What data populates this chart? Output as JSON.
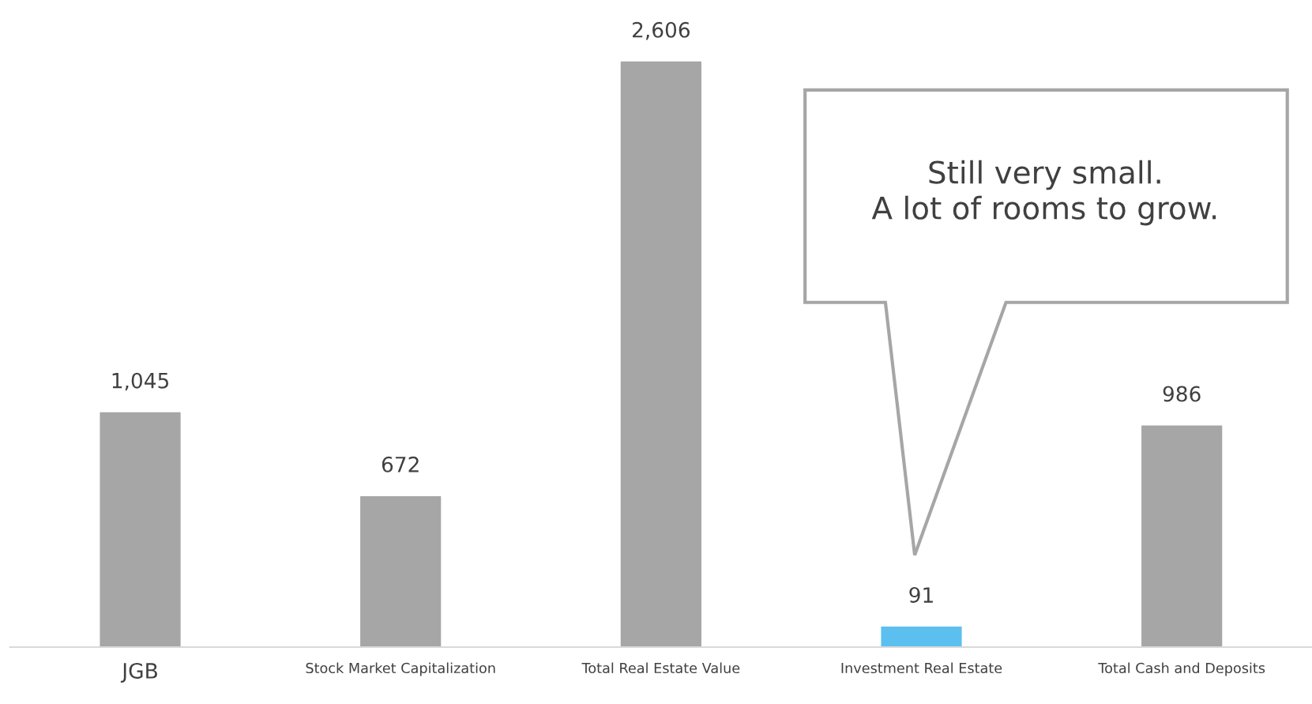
{
  "chart_data": {
    "type": "bar",
    "categories": [
      "JGB",
      "Stock Market Capitalization",
      "Total Real Estate Value",
      "Investment Real Estate",
      "Total Cash and Deposits"
    ],
    "values": [
      1045,
      672,
      2606,
      91,
      986
    ],
    "colors": [
      "#a6a6a6",
      "#a6a6a6",
      "#a6a6a6",
      "#5bc0f0",
      "#a6a6a6"
    ],
    "value_labels": [
      "1,045",
      "672",
      "2,606",
      "91",
      "986"
    ],
    "annotations": [
      "Still very small.\nA lot of rooms to grow."
    ],
    "grid": false,
    "legend": false
  }
}
